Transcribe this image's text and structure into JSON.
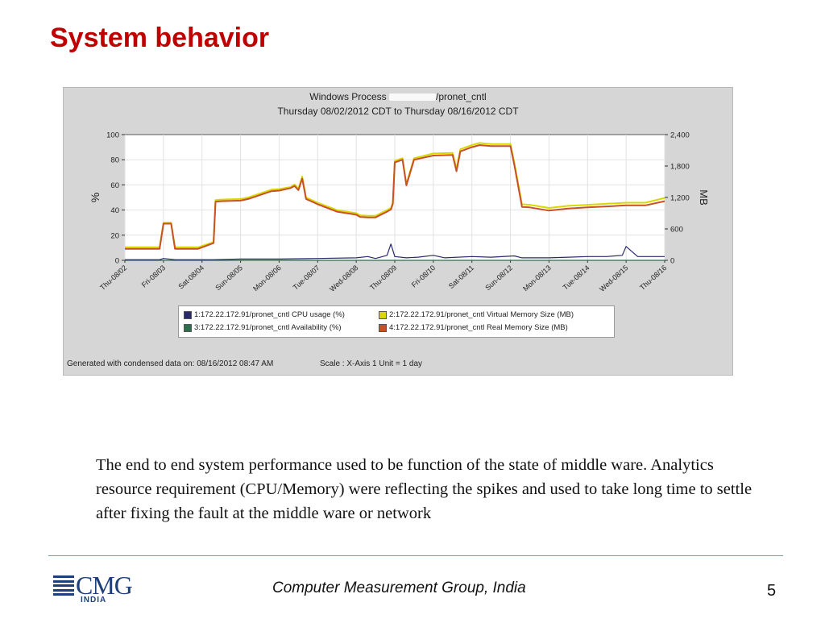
{
  "slide": {
    "title": "System behavior",
    "body_text": "The end to end system performance used to be function of the state of middle ware. Analytics resource requirement (CPU/Memory) were reflecting the spikes and used to take long time to settle after fixing the fault at the middle ware or network",
    "footer_org": "Computer Measurement Group, India",
    "page_number": "5",
    "logo_text": "CMG",
    "logo_subtext": "INDIA"
  },
  "chart_data": {
    "type": "line",
    "title_prefix": "Windows Process ",
    "title_suffix": "/pronet_cntl",
    "subtitle": "Thursday 08/02/2012 CDT to Thursday 08/16/2012 CDT",
    "ylabel_left": "%",
    "ylabel_right": "MB",
    "ylim_left": [
      0,
      100
    ],
    "ylim_right": [
      0,
      2400
    ],
    "yticks_left": [
      "0",
      "20",
      "40",
      "60",
      "80",
      "100"
    ],
    "yticks_right": [
      "0",
      "600",
      "1,200",
      "1,800",
      "2,400"
    ],
    "xlim": [
      0,
      14
    ],
    "categories": [
      "Thu-08/02",
      "Fri-08/03",
      "Sat-08/04",
      "Sun-08/05",
      "Mon-08/06",
      "Tue-08/07",
      "Wed-08/08",
      "Thu-08/09",
      "Fri-08/10",
      "Sat-08/11",
      "Sun-08/12",
      "Mon-08/13",
      "Tue-08/14",
      "Wed-08/15",
      "Thu-08/16"
    ],
    "grid": true,
    "series": [
      {
        "name": "1:172.22.172.91/pronet_cntl CPU usage (%)",
        "axis": "left",
        "color": "#2a2a6a",
        "x": [
          0,
          0.9,
          1.0,
          1.3,
          2.3,
          3,
          4,
          5,
          6,
          6.3,
          6.5,
          6.8,
          6.9,
          7,
          7.3,
          7.6,
          8,
          8.3,
          9,
          9.5,
          10.1,
          10.3,
          11,
          11.5,
          12,
          12.5,
          12.9,
          13,
          13.3,
          14
        ],
        "y": [
          0.5,
          0.5,
          1.5,
          0.5,
          0.5,
          1,
          1,
          1.5,
          2,
          3,
          1.5,
          4,
          13,
          3,
          2,
          2.5,
          4,
          2,
          3,
          2.5,
          3.5,
          2,
          2,
          2.5,
          3,
          3,
          4,
          11,
          3,
          3
        ]
      },
      {
        "name": "2:172.22.172.91/pronet_cntl Virtual Memory Size (MB)",
        "axis": "right",
        "color": "#d8d800",
        "x": [
          0,
          0.9,
          1.0,
          1.2,
          1.3,
          1.9,
          2.3,
          2.35,
          2.5,
          3,
          3.2,
          3.8,
          4,
          4.3,
          4.4,
          4.5,
          4.6,
          4.7,
          5,
          5.5,
          6,
          6.1,
          6.3,
          6.5,
          6.8,
          6.9,
          6.95,
          7,
          7.2,
          7.3,
          7.5,
          8,
          8.5,
          8.6,
          8.7,
          9,
          9.2,
          9.5,
          10.0,
          10.1,
          10.3,
          10.5,
          11,
          11.5,
          12,
          12.5,
          13,
          13.5,
          14
        ],
        "y": [
          250,
          250,
          720,
          720,
          250,
          250,
          350,
          1150,
          1160,
          1170,
          1200,
          1350,
          1360,
          1400,
          1450,
          1370,
          1600,
          1200,
          1100,
          960,
          900,
          860,
          850,
          850,
          960,
          1000,
          1100,
          1900,
          1950,
          1460,
          1950,
          2040,
          2050,
          1750,
          2120,
          2200,
          2240,
          2220,
          2220,
          1860,
          1070,
          1060,
          1000,
          1040,
          1060,
          1080,
          1100,
          1100,
          1190
        ]
      },
      {
        "name": "3:172.22.172.91/pronet_cntl Availability (%)",
        "axis": "left",
        "color": "#2e6e4e",
        "x": [
          0,
          14
        ],
        "y": [
          0,
          0
        ]
      },
      {
        "name": "4:172.22.172.91/pronet_cntl Real Memory Size (MB)",
        "axis": "right",
        "color": "#c85028",
        "x": [
          0,
          0.9,
          1.0,
          1.2,
          1.3,
          1.9,
          2.3,
          2.35,
          2.5,
          3,
          3.2,
          3.8,
          4,
          4.3,
          4.4,
          4.5,
          4.6,
          4.7,
          5,
          5.5,
          6,
          6.1,
          6.3,
          6.5,
          6.8,
          6.9,
          6.95,
          7,
          7.2,
          7.3,
          7.5,
          8,
          8.5,
          8.6,
          8.7,
          9,
          9.2,
          9.5,
          10.0,
          10.1,
          10.3,
          10.5,
          11,
          11.5,
          12,
          12.5,
          13,
          13.5,
          14
        ],
        "y": [
          220,
          220,
          700,
          700,
          220,
          220,
          330,
          1120,
          1130,
          1140,
          1170,
          1320,
          1330,
          1380,
          1420,
          1340,
          1560,
          1170,
          1070,
          930,
          870,
          830,
          820,
          820,
          930,
          970,
          1080,
          1870,
          1920,
          1430,
          1920,
          2000,
          2010,
          1700,
          2080,
          2160,
          2200,
          2180,
          2180,
          1820,
          1020,
          1010,
          950,
          990,
          1010,
          1030,
          1050,
          1050,
          1130
        ]
      }
    ],
    "footer_generated": "Generated with condensed data on: 08/16/2012 08:47 AM",
    "footer_scale": "Scale : X-Axis 1 Unit = 1 day"
  }
}
